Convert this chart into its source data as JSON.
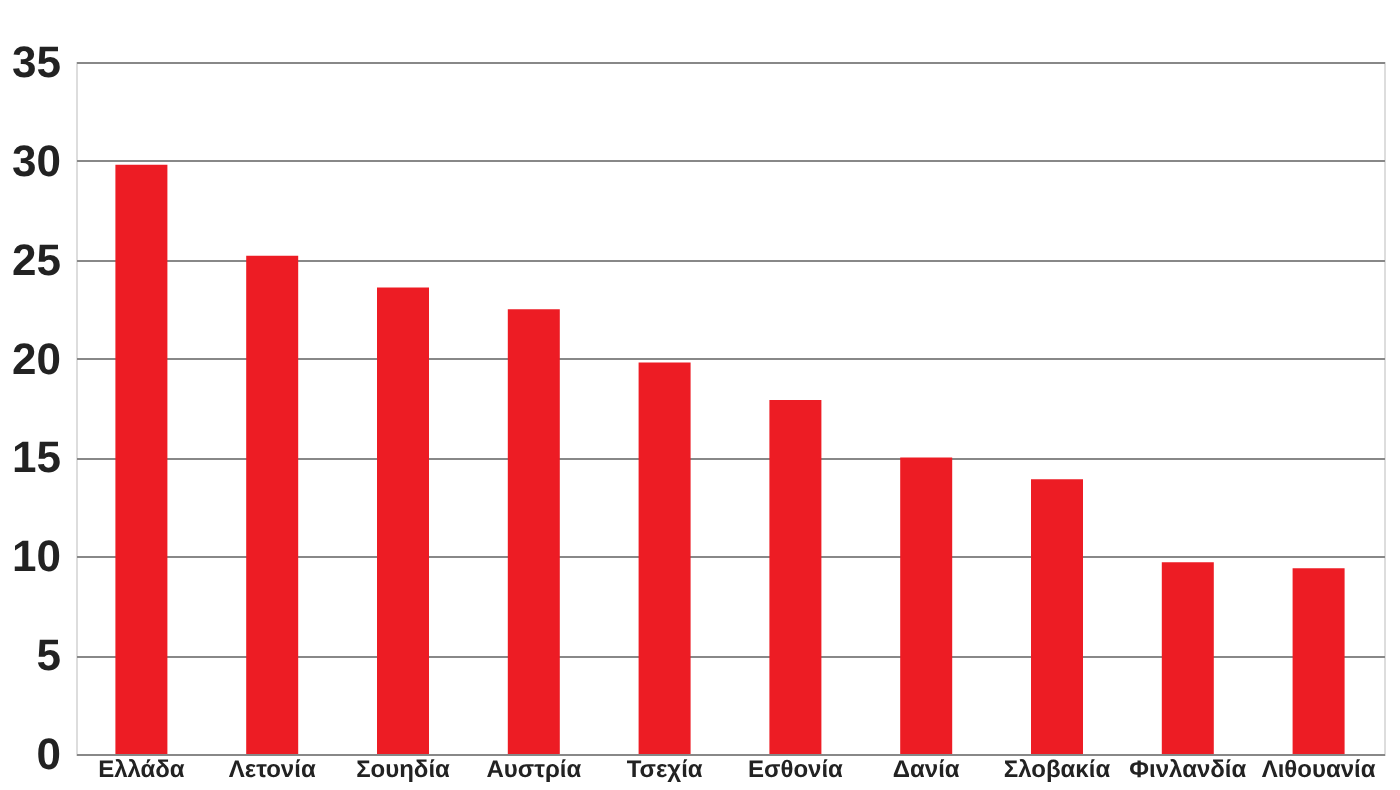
{
  "chart_data": {
    "type": "bar",
    "categories": [
      "Ελλάδα",
      "Λετονία",
      "Σουηδία",
      "Αυστρία",
      "Τσεχία",
      "Εσθονία",
      "Δανία",
      "Σλοβακία",
      "Φινλανδία",
      "Λιθουανία"
    ],
    "values": [
      29.8,
      25.2,
      23.6,
      22.5,
      19.8,
      17.9,
      15.0,
      13.9,
      9.7,
      9.4
    ],
    "color": "#ed1c24",
    "ylim": [
      0,
      35
    ],
    "yticks": [
      0,
      5,
      10,
      15,
      20,
      25,
      30,
      35
    ],
    "grid": "y"
  }
}
